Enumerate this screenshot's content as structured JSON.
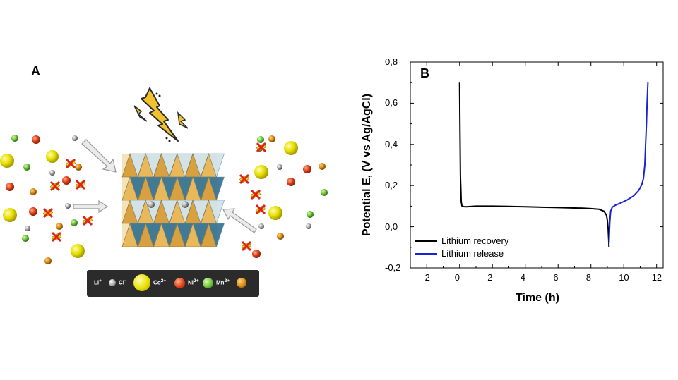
{
  "panel_a": {
    "label": "A",
    "legend": {
      "li": "Li",
      "li_sup": "+",
      "cl": "Cl",
      "cl_sup": "-",
      "co": "Co",
      "co_sup": "2+",
      "ni": "Ni",
      "ni_sup": "2+",
      "mn": "Mn",
      "mn_sup": "2+"
    },
    "colors": {
      "cl_ball": "#9a9a9a",
      "co_ball": "#e8e000",
      "ni_ball": "#e0401a",
      "mn_ball": "#6fc23a",
      "li_ball": "#d98a10",
      "lightning": "#f2c12e",
      "crystal_gold": "#e8b85a",
      "crystal_blue": "#2f6f8f"
    }
  },
  "chart_data": {
    "type": "line",
    "panel_label": "B",
    "xlabel": "Time (h)",
    "ylabel": "Potential E, (V vs Ag/AgCl)",
    "xlim": [
      -3,
      12.4
    ],
    "ylim": [
      -0.2,
      0.8
    ],
    "x_ticks": [
      -2,
      0,
      2,
      4,
      6,
      8,
      10,
      12
    ],
    "x_tick_labels": [
      "-2",
      "0",
      "2",
      "4",
      "6",
      "8",
      "10",
      "12"
    ],
    "y_ticks": [
      -0.2,
      0.0,
      0.2,
      0.4,
      0.6,
      0.8
    ],
    "y_tick_labels": [
      "-0,2",
      "0,0",
      "0,2",
      "0,4",
      "0,6",
      "0,8"
    ],
    "legend_position": "bottom-left",
    "series": [
      {
        "name": "Lithium recovery",
        "color": "#000000",
        "x": [
          0.0,
          0.02,
          0.05,
          0.1,
          0.15,
          0.25,
          0.4,
          1,
          2,
          3,
          4,
          5,
          6,
          7,
          7.5,
          8,
          8.5,
          8.8,
          8.95,
          9.0,
          9.05,
          9.08,
          9.1
        ],
        "y": [
          0.7,
          0.5,
          0.25,
          0.12,
          0.1,
          0.098,
          0.097,
          0.1,
          0.1,
          0.099,
          0.097,
          0.095,
          0.093,
          0.091,
          0.09,
          0.088,
          0.085,
          0.075,
          0.055,
          0.03,
          -0.01,
          -0.06,
          -0.1
        ]
      },
      {
        "name": "Lithium release",
        "color": "#1a22d6",
        "x": [
          9.1,
          9.15,
          9.2,
          9.3,
          9.5,
          9.8,
          10.2,
          10.6,
          10.9,
          11.1,
          11.2,
          11.28,
          11.33,
          11.38,
          11.42,
          11.45,
          11.47
        ],
        "y": [
          -0.08,
          0.02,
          0.075,
          0.095,
          0.105,
          0.115,
          0.13,
          0.15,
          0.175,
          0.205,
          0.235,
          0.3,
          0.4,
          0.5,
          0.6,
          0.66,
          0.7
        ]
      }
    ]
  }
}
